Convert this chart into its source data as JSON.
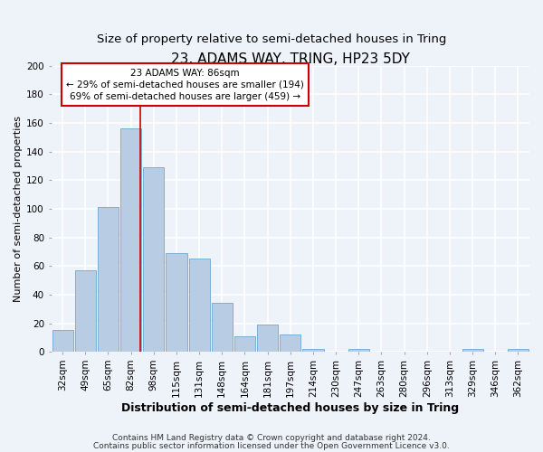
{
  "title": "23, ADAMS WAY, TRING, HP23 5DY",
  "subtitle": "Size of property relative to semi-detached houses in Tring",
  "xlabel": "Distribution of semi-detached houses by size in Tring",
  "ylabel": "Number of semi-detached properties",
  "categories": [
    "32sqm",
    "49sqm",
    "65sqm",
    "82sqm",
    "98sqm",
    "115sqm",
    "131sqm",
    "148sqm",
    "164sqm",
    "181sqm",
    "197sqm",
    "214sqm",
    "230sqm",
    "247sqm",
    "263sqm",
    "280sqm",
    "296sqm",
    "313sqm",
    "329sqm",
    "346sqm",
    "362sqm"
  ],
  "values": [
    15,
    57,
    101,
    156,
    129,
    69,
    65,
    34,
    11,
    19,
    12,
    2,
    0,
    2,
    0,
    0,
    0,
    0,
    2,
    0,
    2
  ],
  "bar_color": "#b8cce4",
  "bar_edge_color": "#7bafd4",
  "property_line_bin": 3,
  "annotation_title": "23 ADAMS WAY: 86sqm",
  "annotation_line1": "← 29% of semi-detached houses are smaller (194)",
  "annotation_line2": "69% of semi-detached houses are larger (459) →",
  "annotation_box_color": "#ffffff",
  "annotation_box_edge": "#cc0000",
  "property_line_color": "#cc0000",
  "ylim": [
    0,
    200
  ],
  "yticks": [
    0,
    20,
    40,
    60,
    80,
    100,
    120,
    140,
    160,
    180,
    200
  ],
  "footer1": "Contains HM Land Registry data © Crown copyright and database right 2024.",
  "footer2": "Contains public sector information licensed under the Open Government Licence v3.0.",
  "background_color": "#eef2f9",
  "grid_color": "#ffffff",
  "title_fontsize": 11,
  "subtitle_fontsize": 9.5,
  "xlabel_fontsize": 9,
  "ylabel_fontsize": 8,
  "tick_fontsize": 7.5,
  "annotation_fontsize": 7.5,
  "footer_fontsize": 6.5
}
